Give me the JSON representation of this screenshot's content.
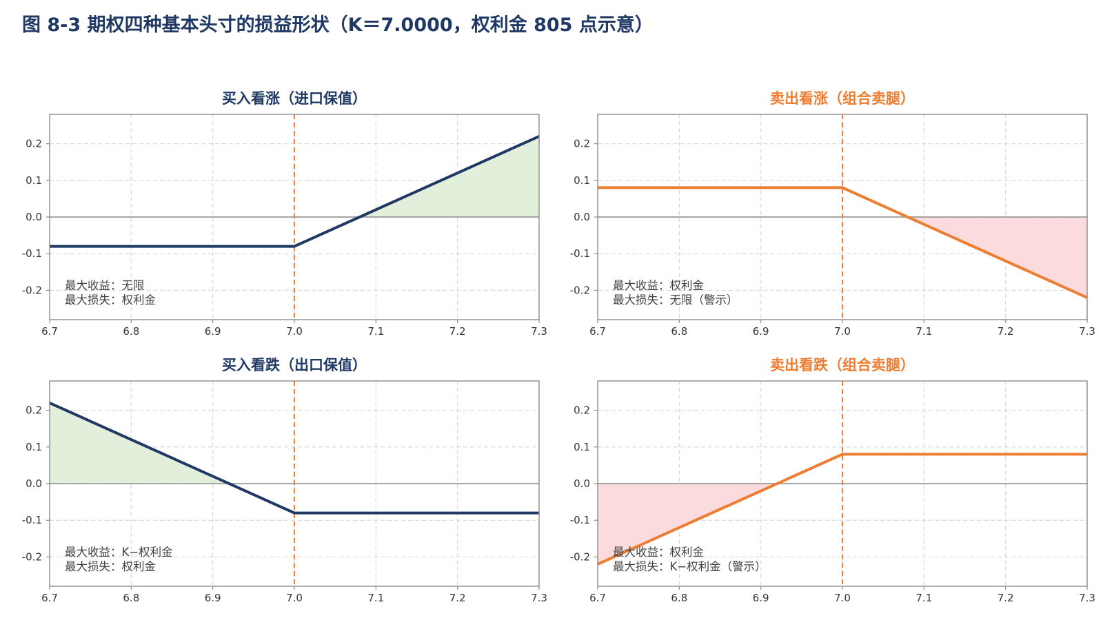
{
  "title": "图 8-3 期权四种基本头寸的损益形状（K＝7.0000，权利金 805 点示意）",
  "colors": {
    "title": "#1f3864",
    "buy": "#1f3864",
    "sell": "#ed7d31",
    "strike_line": "#ed7d31",
    "profit_fill": "#e2efda",
    "loss_fill": "#fbdbdd",
    "zero_line": "#8c8c8c",
    "grid": "#d9d9d9",
    "frame": "#8c8c8c"
  },
  "chart_data": [
    {
      "type": "line",
      "title": "买入看涨（进口保值）",
      "color_key": "buy",
      "fill_key": "profit_fill",
      "fill_region": "above-zero",
      "strike": 7.0,
      "xlim": [
        6.7,
        7.3
      ],
      "ylim": [
        -0.28,
        0.28
      ],
      "xticks": [
        6.7,
        6.8,
        6.9,
        7.0,
        7.1,
        7.2,
        7.3
      ],
      "xtick_labels": [
        "6.7",
        "6.8",
        "6.9",
        "7.0",
        "7.1",
        "7.2",
        "7.3"
      ],
      "yticks": [
        0.2,
        0.1,
        0.0,
        -0.1,
        -0.2
      ],
      "ytick_labels": [
        "0.2",
        "0.1",
        "0.0",
        "-0.1",
        "-0.2"
      ],
      "grid": true,
      "x": [
        6.7,
        7.0,
        7.3
      ],
      "y": [
        -0.08,
        -0.08,
        0.22
      ],
      "notes": [
        "最大收益：无限",
        "最大损失：权利金"
      ]
    },
    {
      "type": "line",
      "title": "卖出看涨（组合卖腿）",
      "color_key": "sell",
      "fill_key": "loss_fill",
      "fill_region": "below-zero",
      "strike": 7.0,
      "xlim": [
        6.7,
        7.3
      ],
      "ylim": [
        -0.28,
        0.28
      ],
      "xticks": [
        6.7,
        6.8,
        6.9,
        7.0,
        7.1,
        7.2,
        7.3
      ],
      "xtick_labels": [
        "6.7",
        "6.8",
        "6.9",
        "7.0",
        "7.1",
        "7.2",
        "7.3"
      ],
      "yticks": [
        0.2,
        0.1,
        0.0,
        -0.1,
        -0.2
      ],
      "ytick_labels": [
        "0.2",
        "0.1",
        "0.0",
        "-0.1",
        "-0.2"
      ],
      "grid": true,
      "x": [
        6.7,
        7.0,
        7.3
      ],
      "y": [
        0.08,
        0.08,
        -0.22
      ],
      "notes": [
        "最大收益：权利金",
        "最大损失：无限（警示）"
      ]
    },
    {
      "type": "line",
      "title": "买入看跌（出口保值）",
      "color_key": "buy",
      "fill_key": "profit_fill",
      "fill_region": "above-zero",
      "strike": 7.0,
      "xlim": [
        6.7,
        7.3
      ],
      "ylim": [
        -0.28,
        0.28
      ],
      "xticks": [
        6.7,
        6.8,
        6.9,
        7.0,
        7.1,
        7.2,
        7.3
      ],
      "xtick_labels": [
        "6.7",
        "6.8",
        "6.9",
        "7.0",
        "7.1",
        "7.2",
        "7.3"
      ],
      "yticks": [
        0.2,
        0.1,
        0.0,
        -0.1,
        -0.2
      ],
      "ytick_labels": [
        "0.2",
        "0.1",
        "0.0",
        "-0.1",
        "-0.2"
      ],
      "grid": true,
      "x": [
        6.7,
        7.0,
        7.3
      ],
      "y": [
        0.22,
        -0.08,
        -0.08
      ],
      "notes": [
        "最大收益：K−权利金",
        "最大损失：权利金"
      ]
    },
    {
      "type": "line",
      "title": "卖出看跌（组合卖腿）",
      "color_key": "sell",
      "fill_key": "loss_fill",
      "fill_region": "below-zero",
      "strike": 7.0,
      "xlim": [
        6.7,
        7.3
      ],
      "ylim": [
        -0.28,
        0.28
      ],
      "xticks": [
        6.7,
        6.8,
        6.9,
        7.0,
        7.1,
        7.2,
        7.3
      ],
      "xtick_labels": [
        "6.7",
        "6.8",
        "6.9",
        "7.0",
        "7.1",
        "7.2",
        "7.3"
      ],
      "yticks": [
        0.2,
        0.1,
        0.0,
        -0.1,
        -0.2
      ],
      "ytick_labels": [
        "0.2",
        "0.1",
        "0.0",
        "-0.1",
        "-0.2"
      ],
      "grid": true,
      "x": [
        6.7,
        7.0,
        7.3
      ],
      "y": [
        -0.22,
        0.08,
        0.08
      ],
      "notes": [
        "最大收益：权利金",
        "最大损失：K−权利金（警示）"
      ]
    }
  ]
}
